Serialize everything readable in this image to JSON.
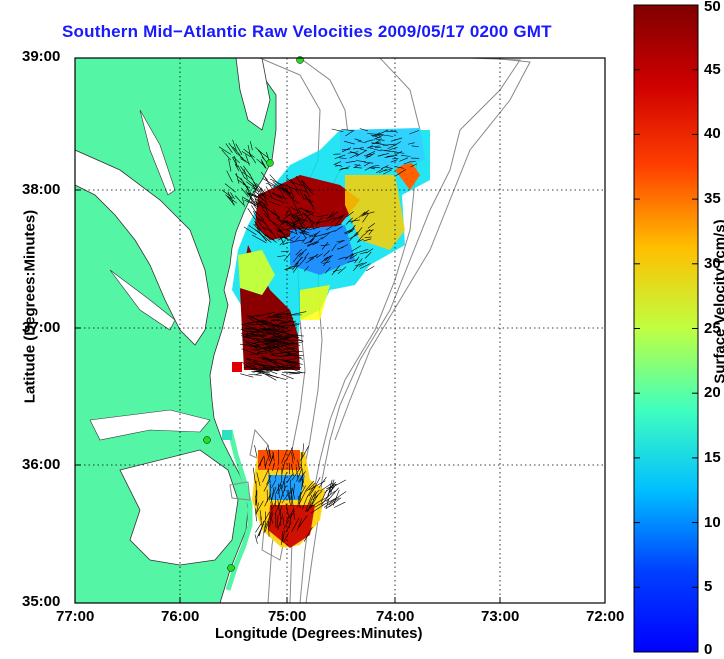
{
  "title": "Southern Mid−Atlantic Raw Velocities 2009/05/17 0200 GMT",
  "x_axis": {
    "label": "Longitude (Degrees:Minutes)",
    "ticks": [
      "77:00",
      "76:00",
      "75:00",
      "74:00",
      "73:00",
      "72:00"
    ]
  },
  "y_axis": {
    "label": "Latitude (Degrees:Minutes)",
    "ticks": [
      "39:00",
      "38:00",
      "37:00",
      "36:00",
      "35:00"
    ]
  },
  "colorbar": {
    "label": "Surface Velocity (cm/s)",
    "ticks": [
      "50",
      "45",
      "40",
      "35",
      "30",
      "25",
      "20",
      "15",
      "10",
      "5",
      "0"
    ],
    "min": 0,
    "max": 50
  },
  "colors": {
    "land": "#55f5a6",
    "title": "#1a1aff",
    "grid": "#000000",
    "bathymetry": "#888888",
    "station": "#22dd22"
  },
  "map": {
    "lon_range": [
      -77,
      -72
    ],
    "lat_range": [
      35,
      39
    ],
    "grid": "dotted"
  }
}
